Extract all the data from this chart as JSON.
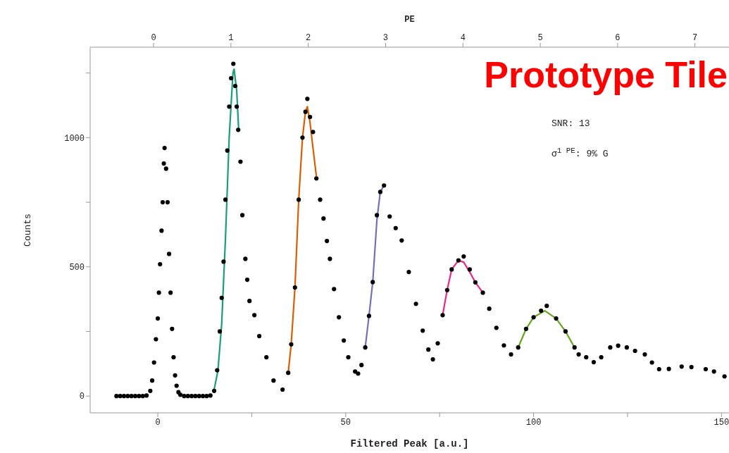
{
  "chart_data": {
    "type": "scatter",
    "xlabel": "Filtered Peak [a.u.]",
    "ylabel": "Counts",
    "x2label": "PE",
    "annotations": [
      "Prototype Tile",
      "SNR: 13",
      "σ$^{1 PE}$: 9% G"
    ],
    "xlim": [
      -18,
      152
    ],
    "xticks": [
      0,
      {
        "value": 25,
        "label": null
      },
      50,
      {
        "value": 75,
        "label": null
      },
      100,
      {
        "value": 125,
        "label": null
      },
      150
    ],
    "x2lim": [
      -0.82,
      7.44
    ],
    "x2ticks": [
      0,
      1,
      2,
      3,
      4,
      5,
      6,
      7
    ],
    "ylim": [
      -65,
      1350
    ],
    "yticks": [
      0,
      {
        "value": 250,
        "label": null
      },
      500,
      {
        "value": 750,
        "label": null
      },
      1000,
      {
        "value": 1250,
        "label": null
      }
    ],
    "grid": false,
    "legend": false,
    "series": [
      {
        "type": "scatter",
        "color": "#000000",
        "marker": "circle",
        "x": [
          -11,
          -10,
          -9,
          -8,
          -7,
          -6,
          -5,
          -4,
          -3,
          -2,
          -1.5,
          -1,
          -0.5,
          0,
          0.3,
          0.6,
          1,
          1.3,
          1.6,
          1.8,
          2.2,
          2.6,
          3,
          3.4,
          3.8,
          4.2,
          4.6,
          5,
          5.5,
          6,
          7,
          8,
          9,
          10,
          11,
          12,
          13,
          14,
          15,
          15.8,
          16.5,
          17,
          17.5,
          18,
          18.5,
          19,
          19.5,
          20.1,
          20.6,
          21,
          21.4,
          22,
          22.5,
          23.3,
          23.8,
          24.4,
          25.7,
          27,
          28.9,
          30.8,
          33.2,
          34.7,
          35.5,
          36.5,
          37.5,
          38.5,
          39.3,
          39.8,
          40.5,
          41.3,
          42.2,
          43.2,
          44.1,
          45,
          45.8,
          46.9,
          48.2,
          49.5,
          50.7,
          52.5,
          53.3,
          54.2,
          55.2,
          56.2,
          57.2,
          58.3,
          59.2,
          60.2,
          61.7,
          63.3,
          64.9,
          66.8,
          68.7,
          70.5,
          72,
          73.2,
          74.5,
          75.8,
          77,
          78.2,
          80,
          81.4,
          83,
          84.5,
          86.5,
          88.2,
          90.1,
          92.1,
          94,
          95.9,
          98,
          100,
          102,
          103.5,
          106,
          108.5,
          110.9,
          112,
          114,
          116,
          118,
          120.4,
          122.5,
          124.8,
          127,
          129.6,
          131.5,
          133.4,
          136,
          139.4,
          142,
          145.8,
          148,
          150.8
        ],
        "values": [
          0,
          0,
          0,
          0,
          0,
          0,
          0,
          0,
          2,
          20,
          60,
          130,
          220,
          300,
          400,
          510,
          640,
          750,
          900,
          960,
          880,
          750,
          550,
          400,
          260,
          150,
          80,
          40,
          15,
          5,
          0,
          0,
          0,
          0,
          0,
          0,
          0,
          2,
          20,
          100,
          250,
          380,
          520,
          760,
          950,
          1120,
          1230,
          1286,
          1200,
          1120,
          1030,
          907,
          700,
          531,
          450,
          368,
          313,
          232,
          150,
          60,
          25,
          90,
          200,
          420,
          760,
          1000,
          1100,
          1150,
          1080,
          1022,
          842,
          760,
          687,
          600,
          531,
          414,
          305,
          215,
          150,
          95,
          87,
          120,
          188,
          310,
          441,
          700,
          790,
          815,
          695,
          650,
          602,
          480,
          357,
          253,
          180,
          142,
          204,
          313,
          410,
          490,
          525,
          540,
          490,
          440,
          400,
          338,
          264,
          196,
          161,
          188,
          260,
          305,
          330,
          349,
          300,
          250,
          188,
          161,
          150,
          131,
          150,
          188,
          195,
          188,
          175,
          161,
          130,
          104,
          105,
          114,
          112,
          104,
          95,
          76
        ]
      },
      {
        "type": "line",
        "color": "#1b9e77",
        "marker": "none",
        "x": [
          15,
          16,
          17,
          18,
          19,
          20,
          20.3,
          21,
          21.5
        ],
        "values": [
          26,
          98,
          279,
          608,
          1001,
          1250,
          1265,
          1181,
          1036
        ]
      },
      {
        "type": "line",
        "color": "#d95f02",
        "marker": "none",
        "x": [
          34.7,
          35.5,
          36.5,
          37.5,
          38.5,
          39.3,
          39.8,
          40.5,
          41.3,
          42.2
        ],
        "values": [
          90,
          200,
          420,
          760,
          1000,
          1100,
          1120,
          1060,
          960,
          850
        ]
      },
      {
        "type": "line",
        "color": "#7570b3",
        "marker": "none",
        "x": [
          55.2,
          56.2,
          57.2,
          58.3,
          59.2,
          60
        ],
        "values": [
          188,
          310,
          441,
          680,
          790,
          810
        ]
      },
      {
        "type": "line",
        "color": "#e7298a",
        "marker": "none",
        "x": [
          75.8,
          77,
          78.2,
          80,
          81.4,
          83,
          84.5,
          86.5
        ],
        "values": [
          313,
          410,
          490,
          525,
          518,
          480,
          440,
          400
        ]
      },
      {
        "type": "line",
        "color": "#66a61e",
        "marker": "none",
        "x": [
          95.9,
          98,
          100,
          103,
          106,
          108.5,
          110.9
        ],
        "values": [
          188,
          260,
          305,
          330,
          300,
          250,
          188
        ]
      }
    ]
  }
}
